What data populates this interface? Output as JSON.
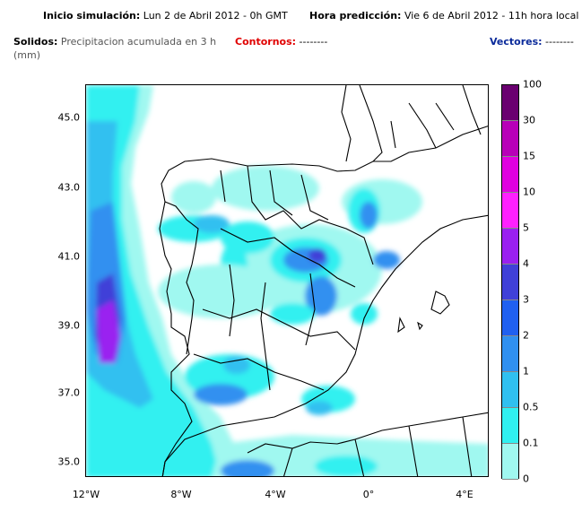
{
  "header": {
    "inicio_label": "Inicio simulación:",
    "inicio_value": "Lun 2 de Abril 2012 - 0h GMT",
    "hora_label": "Hora predicción:",
    "hora_value": "Vie 6 de Abril 2012 - 11h hora local",
    "solidos_label": "Solidos:",
    "solidos_value_line1": "Precipitacion acumulada en 3 h",
    "solidos_value_line2": "(mm)",
    "contornos_label": "Contornos:",
    "contornos_value": "--------",
    "vectores_label": "Vectores:",
    "vectores_value": "--------"
  },
  "axes": {
    "y_ticks": [
      "45.0",
      "43.0",
      "41.0",
      "39.0",
      "37.0",
      "35.0"
    ],
    "x_ticks": [
      "12°W",
      "8°W",
      "4°W",
      "0°",
      "4°E"
    ]
  },
  "legend": {
    "labels": [
      "100",
      "30",
      "15",
      "10",
      "5",
      "4",
      "3",
      "2",
      "1",
      "0.5",
      "0.1",
      "0"
    ],
    "colors": [
      "#6a0070",
      "#b800b8",
      "#e000e0",
      "#ff20ff",
      "#9a20f0",
      "#4040d8",
      "#2060f0",
      "#3090f0",
      "#30c0f0",
      "#30f0f0",
      "#a0f8f0",
      "#ffffff"
    ]
  },
  "map": {
    "lon_range": [
      -12,
      5
    ],
    "lat_range": [
      34.5,
      46
    ]
  }
}
